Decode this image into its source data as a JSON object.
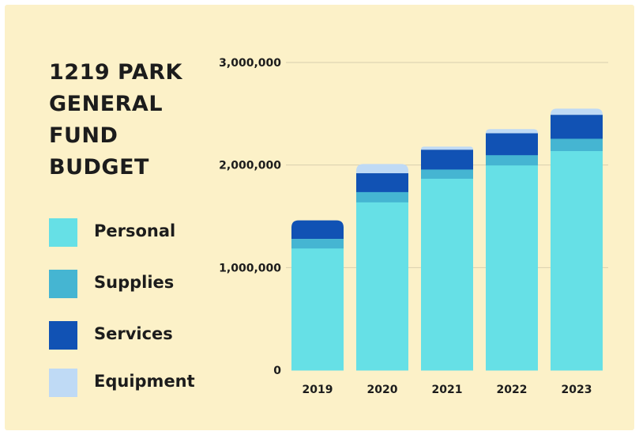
{
  "title_lines": [
    "1219 PARK",
    "GENERAL",
    "FUND",
    "BUDGET"
  ],
  "colors": {
    "background": "#fcf1c8",
    "personal": "#66e0e6",
    "supplies": "#45b5d2",
    "services": "#1152b4",
    "equipment": "#bfdaf5",
    "gridline": "#d9cfae",
    "text": "#1c1c1c"
  },
  "legend": [
    {
      "label": "Personal",
      "color": "#66e0e6"
    },
    {
      "label": "Supplies",
      "color": "#45b5d2"
    },
    {
      "label": "Services",
      "color": "#1152b4"
    },
    {
      "label": "Equipment",
      "color": "#bfdaf5"
    }
  ],
  "chart_data": {
    "type": "bar",
    "stacked": true,
    "title": "1219 PARK GENERAL FUND BUDGET",
    "categories": [
      "2019",
      "2020",
      "2021",
      "2022",
      "2023"
    ],
    "series": [
      {
        "name": "Personal",
        "color": "#66e0e6",
        "values": [
          1190000,
          1640000,
          1870000,
          2000000,
          2140000
        ]
      },
      {
        "name": "Supplies",
        "color": "#45b5d2",
        "values": [
          90000,
          100000,
          90000,
          100000,
          120000
        ]
      },
      {
        "name": "Services",
        "color": "#1152b4",
        "values": [
          180000,
          180000,
          190000,
          210000,
          230000
        ]
      },
      {
        "name": "Equipment",
        "color": "#bfdaf5",
        "values": [
          0,
          90000,
          30000,
          40000,
          60000
        ]
      }
    ],
    "ylim": [
      0,
      3000000
    ],
    "yticks": [
      0,
      1000000,
      2000000,
      3000000
    ],
    "ytick_labels": [
      "0",
      "1,000,000",
      "2,000,000",
      "3,000,000"
    ],
    "grid": true,
    "legend_position": "left"
  }
}
